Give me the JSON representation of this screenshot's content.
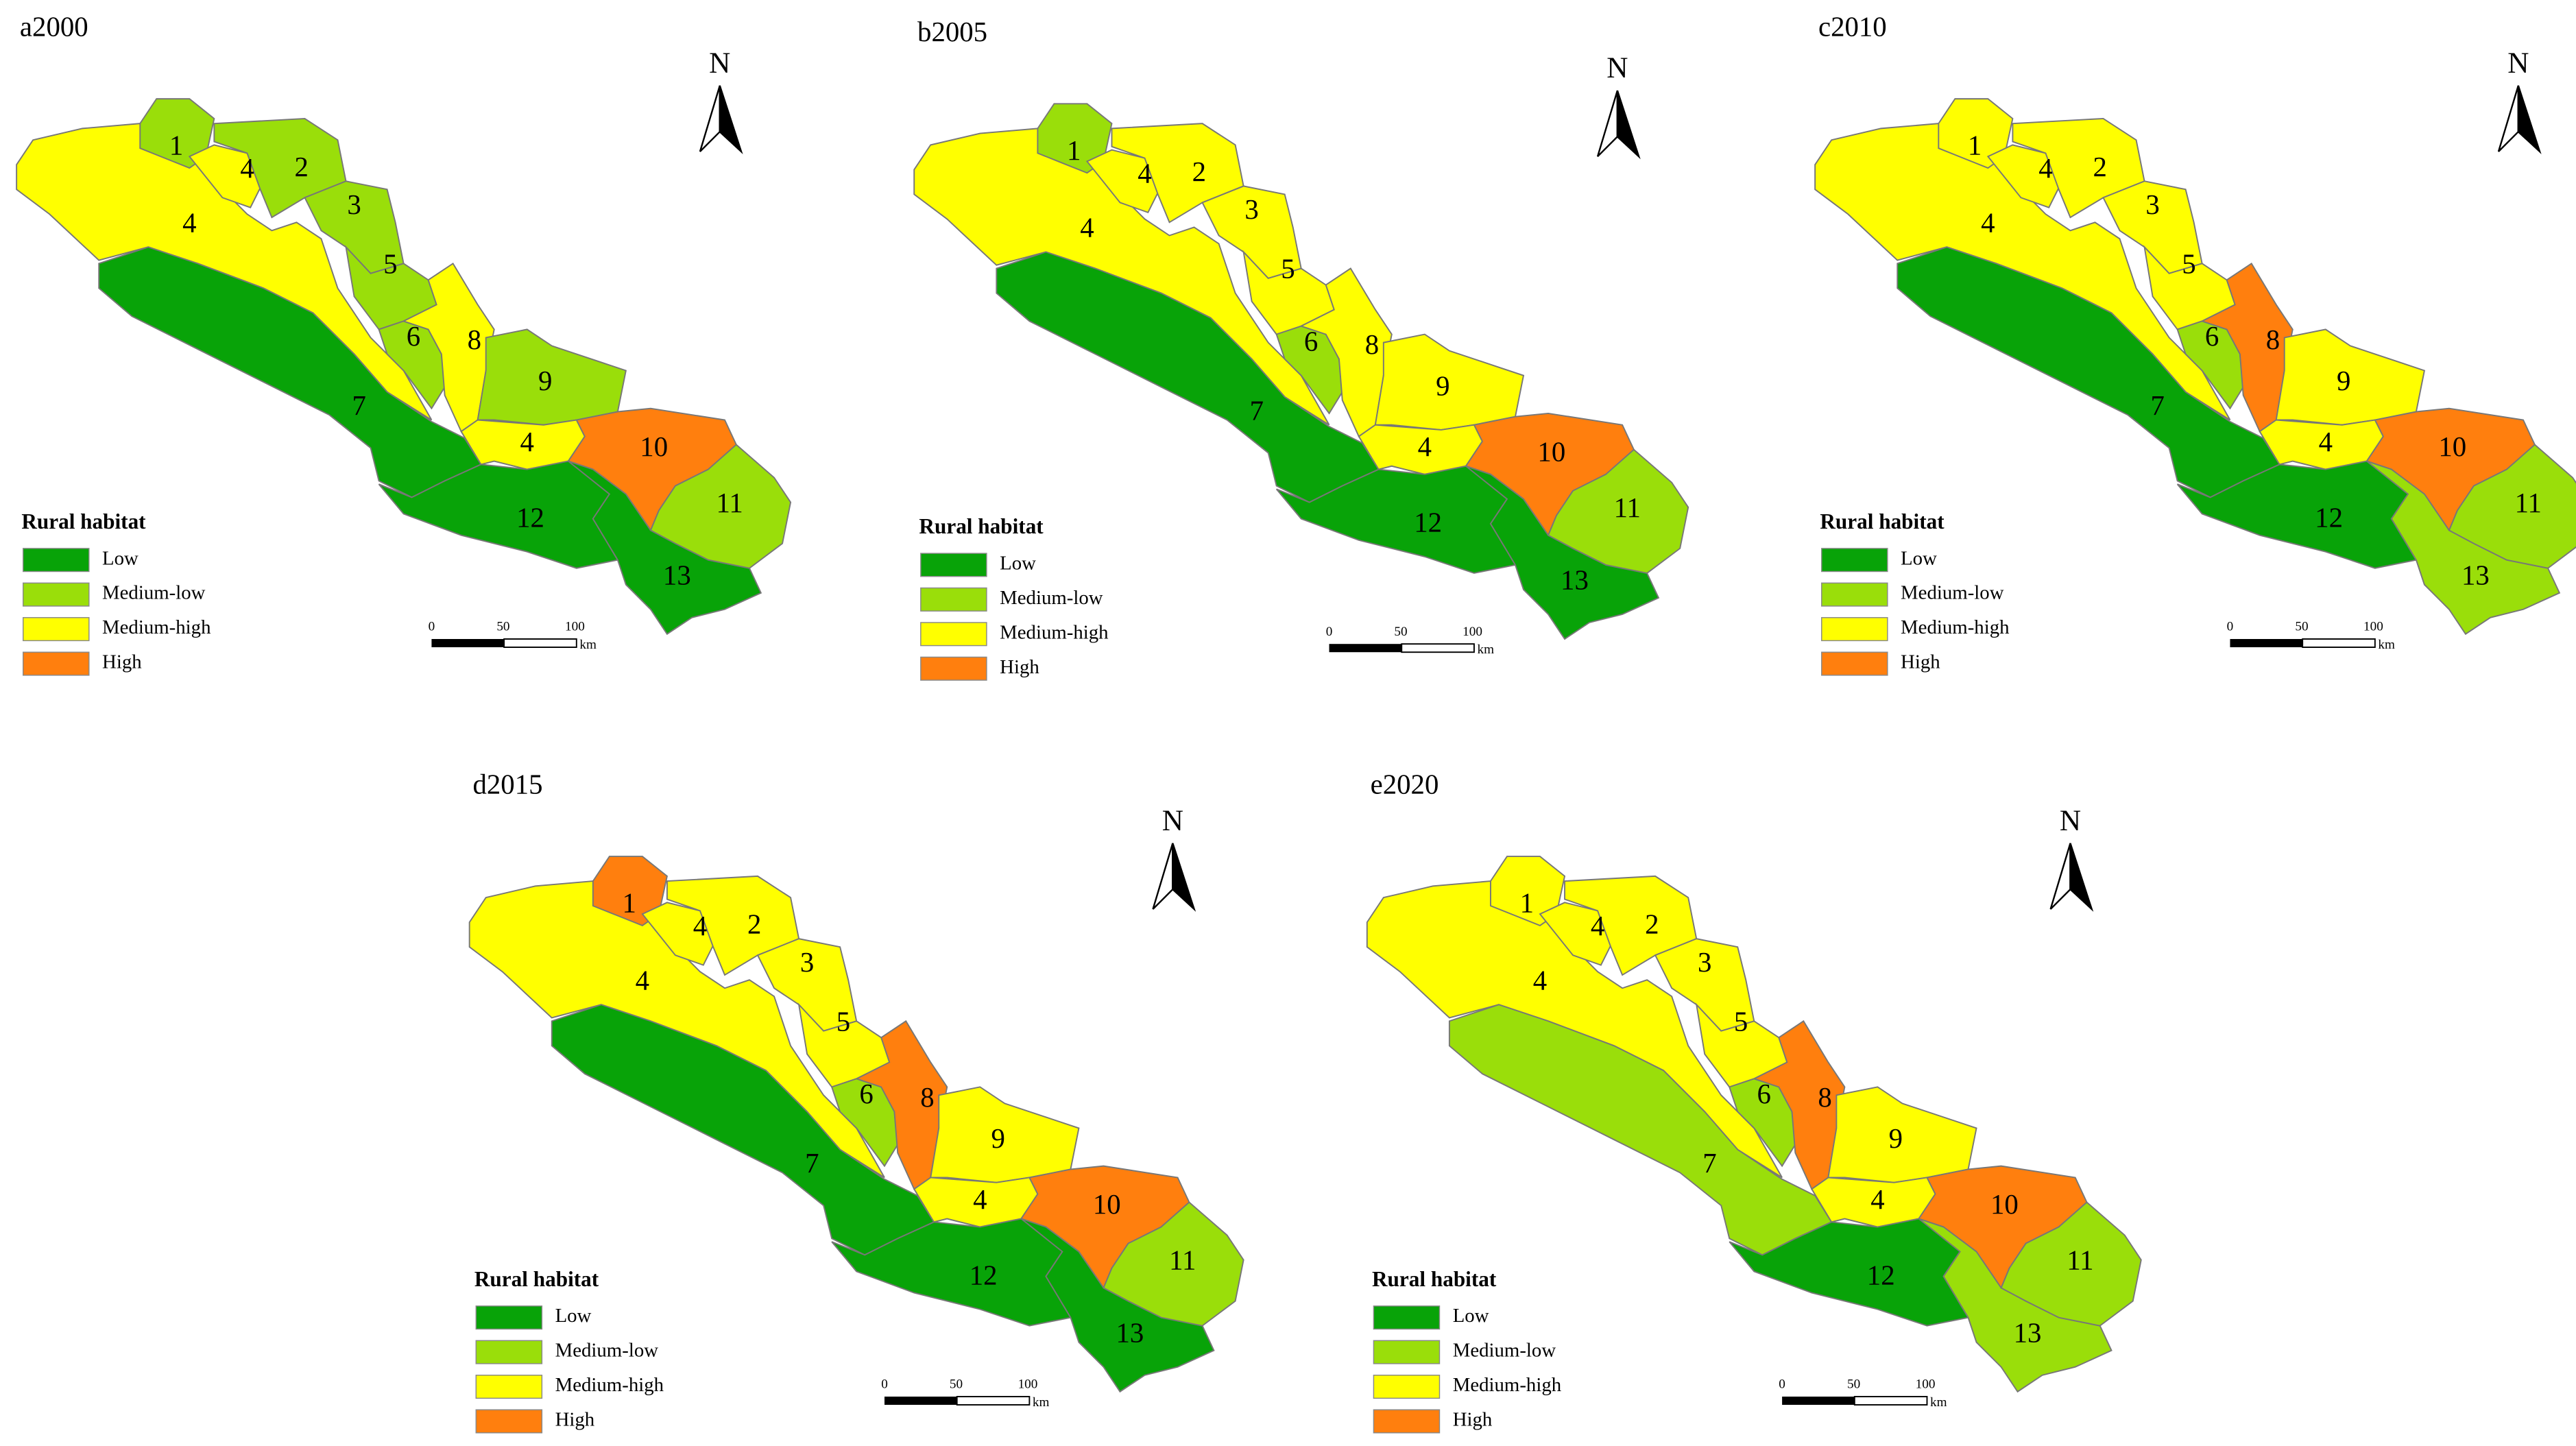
{
  "legend": {
    "title": "Rural habitat",
    "items": [
      {
        "label": "Low",
        "color": "#08a308"
      },
      {
        "label": "Medium-low",
        "color": "#9ade0a"
      },
      {
        "label": "Medium-high",
        "color": "#ffff00"
      },
      {
        "label": "High",
        "color": "#ff7f0e"
      }
    ]
  },
  "scale_bar": {
    "ticks": [
      "0",
      "50",
      "100"
    ],
    "unit": "km"
  },
  "north": "N",
  "panels": [
    {
      "title": "a2000",
      "regions": [
        {
          "label": "4",
          "level": "Medium-high"
        },
        {
          "label": "7",
          "level": "Low"
        },
        {
          "label": "1",
          "level": "Medium-low"
        },
        {
          "label": "4",
          "level": "Medium-high"
        },
        {
          "label": "2",
          "level": "Medium-low"
        },
        {
          "label": "3",
          "level": "Medium-low"
        },
        {
          "label": "5",
          "level": "Medium-low"
        },
        {
          "label": "6",
          "level": "Medium-low"
        },
        {
          "label": "8",
          "level": "Medium-high"
        },
        {
          "label": "9",
          "level": "Medium-low"
        },
        {
          "label": "4",
          "level": "Medium-high"
        },
        {
          "label": "10",
          "level": "High"
        },
        {
          "label": "12",
          "level": "Low"
        },
        {
          "label": "13",
          "level": "Low"
        },
        {
          "label": "11",
          "level": "Medium-low"
        }
      ]
    },
    {
      "title": "b2005",
      "regions": [
        {
          "label": "4",
          "level": "Medium-high"
        },
        {
          "label": "7",
          "level": "Low"
        },
        {
          "label": "1",
          "level": "Medium-low"
        },
        {
          "label": "4",
          "level": "Medium-high"
        },
        {
          "label": "2",
          "level": "Medium-high"
        },
        {
          "label": "3",
          "level": "Medium-high"
        },
        {
          "label": "5",
          "level": "Medium-high"
        },
        {
          "label": "6",
          "level": "Medium-low"
        },
        {
          "label": "8",
          "level": "Medium-high"
        },
        {
          "label": "9",
          "level": "Medium-high"
        },
        {
          "label": "4",
          "level": "Medium-high"
        },
        {
          "label": "10",
          "level": "High"
        },
        {
          "label": "12",
          "level": "Low"
        },
        {
          "label": "13",
          "level": "Low"
        },
        {
          "label": "11",
          "level": "Medium-low"
        }
      ]
    },
    {
      "title": "c2010",
      "regions": [
        {
          "label": "4",
          "level": "Medium-high"
        },
        {
          "label": "7",
          "level": "Low"
        },
        {
          "label": "1",
          "level": "Medium-high"
        },
        {
          "label": "4",
          "level": "Medium-high"
        },
        {
          "label": "2",
          "level": "Medium-high"
        },
        {
          "label": "3",
          "level": "Medium-high"
        },
        {
          "label": "5",
          "level": "Medium-high"
        },
        {
          "label": "6",
          "level": "Medium-low"
        },
        {
          "label": "8",
          "level": "High"
        },
        {
          "label": "9",
          "level": "Medium-high"
        },
        {
          "label": "4",
          "level": "Medium-high"
        },
        {
          "label": "10",
          "level": "High"
        },
        {
          "label": "12",
          "level": "Low"
        },
        {
          "label": "13",
          "level": "Medium-low"
        },
        {
          "label": "11",
          "level": "Medium-low"
        }
      ]
    },
    {
      "title": "d2015",
      "regions": [
        {
          "label": "4",
          "level": "Medium-high"
        },
        {
          "label": "7",
          "level": "Low"
        },
        {
          "label": "1",
          "level": "High"
        },
        {
          "label": "4",
          "level": "Medium-high"
        },
        {
          "label": "2",
          "level": "Medium-high"
        },
        {
          "label": "3",
          "level": "Medium-high"
        },
        {
          "label": "5",
          "level": "Medium-high"
        },
        {
          "label": "6",
          "level": "Medium-low"
        },
        {
          "label": "8",
          "level": "High"
        },
        {
          "label": "9",
          "level": "Medium-high"
        },
        {
          "label": "4",
          "level": "Medium-high"
        },
        {
          "label": "10",
          "level": "High"
        },
        {
          "label": "12",
          "level": "Low"
        },
        {
          "label": "13",
          "level": "Low"
        },
        {
          "label": "11",
          "level": "Medium-low"
        }
      ]
    },
    {
      "title": "e2020",
      "regions": [
        {
          "label": "4",
          "level": "Medium-high"
        },
        {
          "label": "7",
          "level": "Medium-low"
        },
        {
          "label": "1",
          "level": "Medium-high"
        },
        {
          "label": "4",
          "level": "Medium-high"
        },
        {
          "label": "2",
          "level": "Medium-high"
        },
        {
          "label": "3",
          "level": "Medium-high"
        },
        {
          "label": "5",
          "level": "Medium-high"
        },
        {
          "label": "6",
          "level": "Medium-low"
        },
        {
          "label": "8",
          "level": "High"
        },
        {
          "label": "9",
          "level": "Medium-high"
        },
        {
          "label": "4",
          "level": "Medium-high"
        },
        {
          "label": "10",
          "level": "High"
        },
        {
          "label": "12",
          "level": "Low"
        },
        {
          "label": "13",
          "level": "Medium-low"
        },
        {
          "label": "11",
          "level": "Medium-low"
        }
      ]
    }
  ]
}
